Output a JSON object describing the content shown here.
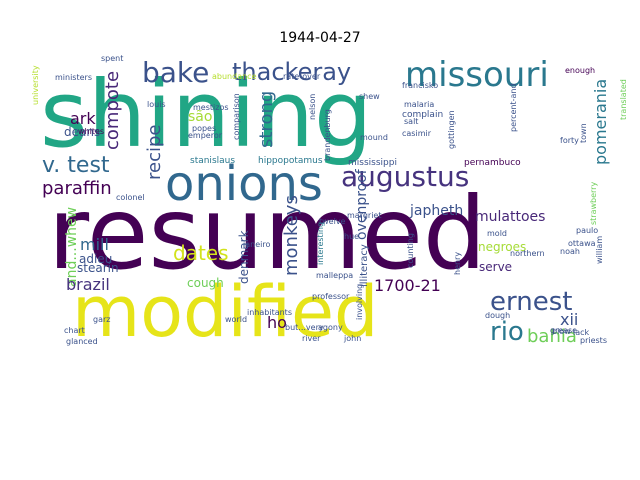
{
  "title": "1944-04-27",
  "words": [
    {
      "text": "resumed",
      "color": "#440154"
    },
    {
      "text": "shining",
      "color": "#21a685"
    },
    {
      "text": "modified",
      "color": "#e6e419"
    },
    {
      "text": "onions",
      "color": "#31688e"
    },
    {
      "text": "missouri",
      "color": "#2a788e"
    },
    {
      "text": "bake",
      "color": "#3b528b"
    },
    {
      "text": "thackeray",
      "color": "#3b528b"
    },
    {
      "text": "augustus",
      "color": "#46337e"
    },
    {
      "text": "v. test",
      "color": "#31688e"
    },
    {
      "text": "ernest",
      "color": "#3b528b"
    },
    {
      "text": "rio",
      "color": "#2a788e"
    },
    {
      "text": "bahia",
      "color": "#6ece58"
    },
    {
      "text": "paraffin",
      "color": "#440154"
    },
    {
      "text": "compote",
      "color": "#482878"
    },
    {
      "text": "recipe",
      "color": "#3b528b"
    },
    {
      "text": "strong",
      "color": "#31688e"
    },
    {
      "text": "são",
      "color": "#a5db36"
    },
    {
      "text": "monkeys",
      "color": "#3b528b"
    },
    {
      "text": "pomerania",
      "color": "#2a788e"
    },
    {
      "text": "ovenproof",
      "color": "#3b528b"
    },
    {
      "text": "ark",
      "color": "#440154"
    },
    {
      "text": "deans",
      "color": "#3b528b"
    },
    {
      "text": "and...whew",
      "color": "#6ece58"
    },
    {
      "text": "mill",
      "color": "#31688e"
    },
    {
      "text": "dates",
      "color": "#d2e21b"
    },
    {
      "text": "japheth",
      "color": "#3b528b"
    },
    {
      "text": "mulattoes",
      "color": "#482878"
    },
    {
      "text": "1700-21",
      "color": "#440154"
    },
    {
      "text": "brazil",
      "color": "#46337e"
    },
    {
      "text": "adieu",
      "color": "#3b528b"
    },
    {
      "text": "stearin",
      "color": "#3b528b"
    },
    {
      "text": "cough",
      "color": "#6ece58"
    },
    {
      "text": "ho",
      "color": "#440154"
    },
    {
      "text": "negroes",
      "color": "#a5db36"
    },
    {
      "text": "serve",
      "color": "#482878"
    },
    {
      "text": "xii",
      "color": "#3b528b"
    },
    {
      "text": "denmark",
      "color": "#3b528b"
    },
    {
      "text": "illiteracy",
      "color": "#3b528b"
    },
    {
      "text": "mississippi",
      "color": "#3b528b"
    },
    {
      "text": "stanislaus",
      "color": "#2a788e"
    },
    {
      "text": "hippopotamus",
      "color": "#2a788e"
    },
    {
      "text": "pernambuco",
      "color": "#440154"
    },
    {
      "text": "brandenburg",
      "color": "#3b528b"
    },
    {
      "text": "casimir",
      "color": "#3b528b"
    },
    {
      "text": "complain",
      "color": "#3b528b"
    },
    {
      "text": "francisko",
      "color": "#3b528b"
    },
    {
      "text": "gottingen",
      "color": "#3b528b"
    },
    {
      "text": "percent-and",
      "color": "#3b528b"
    },
    {
      "text": "translated",
      "color": "#6ece58"
    },
    {
      "text": "enough",
      "color": "#440154"
    },
    {
      "text": "forty",
      "color": "#3b528b"
    },
    {
      "text": "emperor",
      "color": "#3b528b"
    },
    {
      "text": "popes",
      "color": "#3b528b"
    },
    {
      "text": "comparison",
      "color": "#3b528b"
    },
    {
      "text": "abundance",
      "color": "#b5de2b"
    },
    {
      "text": "rate-over",
      "color": "#3b528b"
    },
    {
      "text": "mestizos",
      "color": "#3b528b"
    },
    {
      "text": "whites",
      "color": "#440154"
    },
    {
      "text": "ministers",
      "color": "#3b528b"
    },
    {
      "text": "spent",
      "color": "#3b528b"
    },
    {
      "text": "university",
      "color": "#b5de2b"
    },
    {
      "text": "louis",
      "color": "#3b528b"
    },
    {
      "text": "nelson",
      "color": "#3b528b"
    },
    {
      "text": "malaria",
      "color": "#3b528b"
    },
    {
      "text": "salt",
      "color": "#3b528b"
    },
    {
      "text": "mound",
      "color": "#3b528b"
    },
    {
      "text": "strawberry",
      "color": "#6ece58"
    },
    {
      "text": "town",
      "color": "#3b528b"
    },
    {
      "text": "twelve",
      "color": "#3b528b"
    },
    {
      "text": "counting",
      "color": "#3b528b"
    },
    {
      "text": "interesting",
      "color": "#2a788e"
    },
    {
      "text": "margriet",
      "color": "#3b528b"
    },
    {
      "text": "janeiro",
      "color": "#3b528b"
    },
    {
      "text": "hue",
      "color": "#3b528b"
    },
    {
      "text": "malleppa",
      "color": "#3b528b"
    },
    {
      "text": "professor",
      "color": "#3b528b"
    },
    {
      "text": "agony",
      "color": "#3b528b"
    },
    {
      "text": "involving",
      "color": "#3b528b"
    },
    {
      "text": "dough",
      "color": "#3b528b"
    },
    {
      "text": "but...very",
      "color": "#3b528b"
    },
    {
      "text": "inhabitants",
      "color": "#3b528b"
    },
    {
      "text": "world",
      "color": "#3b528b"
    },
    {
      "text": "river",
      "color": "#3b528b"
    },
    {
      "text": "john",
      "color": "#3b528b"
    },
    {
      "text": "priests",
      "color": "#3b528b"
    },
    {
      "text": "paulo",
      "color": "#3b528b"
    },
    {
      "text": "ottawa",
      "color": "#3b528b"
    },
    {
      "text": "northern",
      "color": "#3b528b"
    },
    {
      "text": "noah",
      "color": "#3b528b"
    },
    {
      "text": "william",
      "color": "#3b528b"
    },
    {
      "text": "mold",
      "color": "#3b528b"
    },
    {
      "text": "henry",
      "color": "#3b528b"
    },
    {
      "text": "blow",
      "color": "#3b528b"
    },
    {
      "text": "lack",
      "color": "#3b528b"
    },
    {
      "text": "chart",
      "color": "#3b528b"
    },
    {
      "text": "glanced",
      "color": "#3b528b"
    },
    {
      "text": "garz",
      "color": "#3b528b"
    },
    {
      "text": "colonel",
      "color": "#3b528b"
    },
    {
      "text": "shew",
      "color": "#3b528b"
    },
    {
      "text": "grease",
      "color": "#3b528b"
    }
  ]
}
